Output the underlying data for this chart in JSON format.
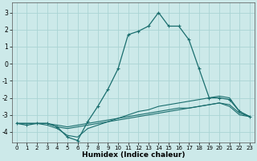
{
  "xlabel": "Humidex (Indice chaleur)",
  "background_color": "#cce9e9",
  "grid_color": "#aad4d4",
  "line_color": "#1a6e6e",
  "xlim": [
    -0.5,
    23.5
  ],
  "ylim": [
    -4.6,
    3.6
  ],
  "xticks": [
    0,
    1,
    2,
    3,
    4,
    5,
    6,
    7,
    8,
    9,
    10,
    11,
    12,
    13,
    14,
    15,
    16,
    17,
    18,
    19,
    20,
    21,
    22,
    23
  ],
  "yticks": [
    -4,
    -3,
    -2,
    -1,
    0,
    1,
    2,
    3
  ],
  "series_main": [
    -3.5,
    -3.6,
    -3.5,
    -3.5,
    -3.7,
    -4.3,
    -4.5,
    -3.4,
    -2.5,
    -1.5,
    -0.3,
    1.7,
    1.9,
    2.2,
    3.0,
    2.2,
    2.2,
    1.4,
    -0.3,
    -2.0,
    -2.0,
    -2.1,
    -2.8,
    -3.1
  ],
  "series_flat1": [
    -3.5,
    -3.5,
    -3.5,
    -3.6,
    -3.8,
    -4.2,
    -4.3,
    -3.8,
    -3.6,
    -3.4,
    -3.2,
    -3.0,
    -2.8,
    -2.7,
    -2.5,
    -2.4,
    -2.3,
    -2.2,
    -2.1,
    -2.0,
    -1.9,
    -2.0,
    -2.8,
    -3.1
  ],
  "series_flat2": [
    -3.5,
    -3.5,
    -3.5,
    -3.5,
    -3.7,
    -3.8,
    -3.7,
    -3.6,
    -3.5,
    -3.4,
    -3.3,
    -3.2,
    -3.1,
    -3.0,
    -2.9,
    -2.8,
    -2.7,
    -2.6,
    -2.5,
    -2.4,
    -2.3,
    -2.4,
    -2.9,
    -3.1
  ],
  "series_flat3": [
    -3.5,
    -3.5,
    -3.5,
    -3.5,
    -3.6,
    -3.7,
    -3.6,
    -3.5,
    -3.4,
    -3.3,
    -3.2,
    -3.1,
    -3.0,
    -2.9,
    -2.8,
    -2.7,
    -2.6,
    -2.6,
    -2.5,
    -2.4,
    -2.3,
    -2.5,
    -3.0,
    -3.1
  ]
}
